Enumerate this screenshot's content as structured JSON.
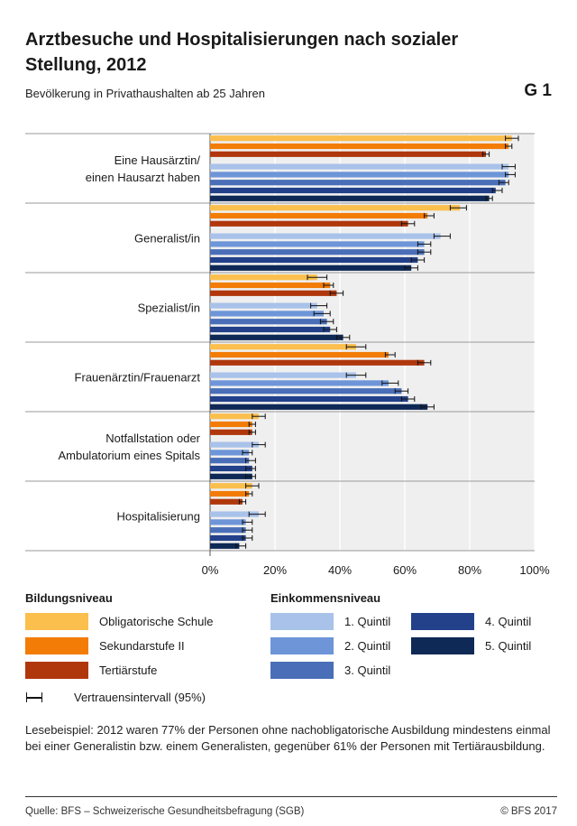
{
  "title": "Arztbesuche und Hospitalisierungen nach sozialer Stellung, 2012",
  "subtitle": "Bevölkerung in Privathaushalten ab 25 Jahren",
  "graph_number": "G 1",
  "colors": {
    "obligatorische_schule": "#fbbf4e",
    "sekundarstufe_ii": "#f27c06",
    "tertiaerstufe": "#b0370c",
    "quintil_1": "#a9c2ea",
    "quintil_2": "#6d95d8",
    "quintil_3": "#4a6fb8",
    "quintil_4": "#23418a",
    "quintil_5": "#0e2956",
    "plot_background": "#efefef",
    "gridline": "#ffffff"
  },
  "chart_data": {
    "type": "bar",
    "orientation": "horizontal",
    "categories": [
      "Eine Hausärztin/\neinen Hausarzt haben",
      "Generalist/in",
      "Spezialist/in",
      "Frauenärztin/Frauenarzt",
      "Notfallstation oder\nAmbulatorium eines Spitals",
      "Hospitalisierung"
    ],
    "series": [
      {
        "name": "Obligatorische Schule",
        "group": "Bildungsniveau",
        "values": [
          93,
          77,
          33,
          45,
          15,
          13
        ],
        "ci": [
          [
            91,
            95
          ],
          [
            74,
            79
          ],
          [
            30,
            36
          ],
          [
            42,
            48
          ],
          [
            13,
            17
          ],
          [
            11,
            15
          ]
        ]
      },
      {
        "name": "Sekundarstufe II",
        "group": "Bildungsniveau",
        "values": [
          92,
          67,
          37,
          55,
          13,
          12
        ],
        "ci": [
          [
            91,
            93
          ],
          [
            66,
            69
          ],
          [
            35,
            38
          ],
          [
            54,
            57
          ],
          [
            12,
            14
          ],
          [
            11,
            13
          ]
        ]
      },
      {
        "name": "Tertiärstufe",
        "group": "Bildungsniveau",
        "values": [
          85,
          61,
          39,
          66,
          13,
          10
        ],
        "ci": [
          [
            84,
            86
          ],
          [
            59,
            63
          ],
          [
            37,
            41
          ],
          [
            64,
            68
          ],
          [
            12,
            14
          ],
          [
            9,
            11
          ]
        ]
      },
      {
        "name": "1. Quintil",
        "group": "Einkommensniveau",
        "values": [
          92,
          71,
          33,
          45,
          15,
          15
        ],
        "ci": [
          [
            90,
            94
          ],
          [
            69,
            74
          ],
          [
            31,
            36
          ],
          [
            42,
            48
          ],
          [
            13,
            17
          ],
          [
            12,
            17
          ]
        ]
      },
      {
        "name": "2. Quintil",
        "group": "Einkommensniveau",
        "values": [
          92,
          66,
          35,
          55,
          12,
          11
        ],
        "ci": [
          [
            91,
            94
          ],
          [
            64,
            68
          ],
          [
            32,
            37
          ],
          [
            53,
            58
          ],
          [
            10,
            13
          ],
          [
            10,
            13
          ]
        ]
      },
      {
        "name": "3. Quintil",
        "group": "Einkommensniveau",
        "values": [
          91,
          66,
          36,
          59,
          12,
          11
        ],
        "ci": [
          [
            89,
            92
          ],
          [
            64,
            68
          ],
          [
            34,
            38
          ],
          [
            57,
            61
          ],
          [
            11,
            14
          ],
          [
            10,
            13
          ]
        ]
      },
      {
        "name": "4. Quintil",
        "group": "Einkommensniveau",
        "values": [
          88,
          64,
          37,
          61,
          13,
          11
        ],
        "ci": [
          [
            87,
            90
          ],
          [
            62,
            66
          ],
          [
            35,
            39
          ],
          [
            59,
            63
          ],
          [
            11,
            14
          ],
          [
            10,
            13
          ]
        ]
      },
      {
        "name": "5. Quintil",
        "group": "Einkommensniveau",
        "values": [
          86,
          62,
          41,
          67,
          13,
          9
        ],
        "ci": [
          [
            85,
            87
          ],
          [
            60,
            64
          ],
          [
            39,
            43
          ],
          [
            65,
            69
          ],
          [
            11,
            14
          ],
          [
            8,
            11
          ]
        ]
      }
    ],
    "xlim": [
      0,
      100
    ],
    "x_ticks": [
      "0%",
      "20%",
      "40%",
      "60%",
      "80%",
      "100%"
    ],
    "x_tick_values": [
      0,
      20,
      40,
      60,
      80,
      100
    ],
    "grid": true,
    "legend_placement": "bottom"
  },
  "legend": {
    "education_heading": "Bildungsniveau",
    "education_items": [
      "Obligatorische Schule",
      "Sekundarstufe II",
      "Tertiärstufe"
    ],
    "income_heading": "Einkommensniveau",
    "income_items": [
      "1. Quintil",
      "2. Quintil",
      "3. Quintil",
      "4. Quintil",
      "5. Quintil"
    ],
    "ci_label": "Vertrauensintervall (95%)"
  },
  "note": "Lesebeispiel: 2012 waren 77% der Personen ohne nachobligatorische Ausbildung mindestens einmal bei einer Generalistin bzw. einem Generalisten, gegenüber 61% der Personen mit Tertiärausbildung.",
  "source": "Quelle: BFS – Schweizerische Gesundheitsbefragung (SGB)",
  "copyright": "© BFS 2017"
}
